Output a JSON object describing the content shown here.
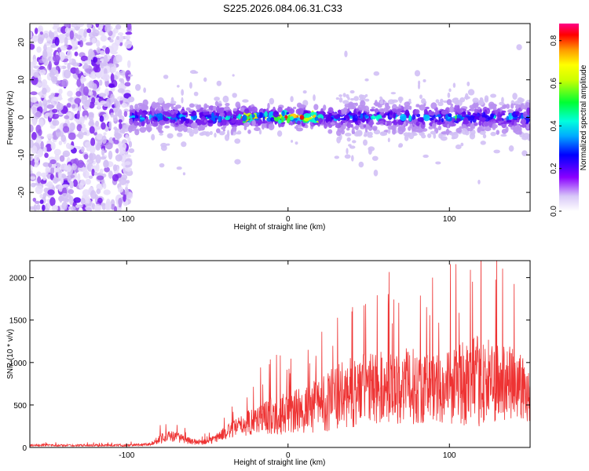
{
  "title": "S225.2026.084.06.31.C33",
  "chart_data": [
    {
      "type": "heatmap",
      "xlabel": "Height of straight line (km)",
      "ylabel": "Frequency (Hz)",
      "xlim": [
        -160,
        150
      ],
      "ylim": [
        -25,
        25
      ],
      "xticks": [
        -100,
        0,
        100
      ],
      "yticks": [
        -20,
        -10,
        0,
        10,
        20
      ],
      "grid": false,
      "colorbar": {
        "label": "Normalized spectral amplitude",
        "range": [
          0,
          0.88
        ],
        "ticks": [
          0.0,
          0.2,
          0.4,
          0.6,
          0.8
        ]
      },
      "noise_region_x": [
        -160,
        -98
      ],
      "signal_track_center_hz": 0
    },
    {
      "type": "line",
      "xlabel": "Height of straight line (km)",
      "ylabel": "SNR (10 * v/v)",
      "xlim": [
        -160,
        150
      ],
      "ylim": [
        0,
        2200
      ],
      "xticks": [
        -100,
        0,
        100
      ],
      "yticks": [
        0,
        500,
        1000,
        1500,
        2000
      ],
      "grid": false,
      "series": [
        {
          "color": "#ee3333",
          "envelope_x": [
            -160,
            -100,
            -85,
            -78,
            -70,
            -60,
            -50,
            -40,
            -30,
            -20,
            -10,
            0,
            10,
            20,
            30,
            40,
            50,
            60,
            70,
            80,
            90,
            100,
            110,
            120,
            130,
            140,
            150
          ],
          "envelope_base": [
            25,
            25,
            40,
            120,
            130,
            70,
            60,
            160,
            250,
            330,
            380,
            400,
            440,
            520,
            580,
            650,
            700,
            700,
            720,
            720,
            700,
            720,
            760,
            780,
            760,
            740,
            700
          ],
          "envelope_spread": [
            20,
            20,
            30,
            120,
            110,
            60,
            60,
            120,
            200,
            300,
            380,
            420,
            480,
            560,
            650,
            700,
            720,
            720,
            750,
            750,
            700,
            750,
            850,
            900,
            800,
            750,
            700
          ]
        }
      ]
    }
  ]
}
